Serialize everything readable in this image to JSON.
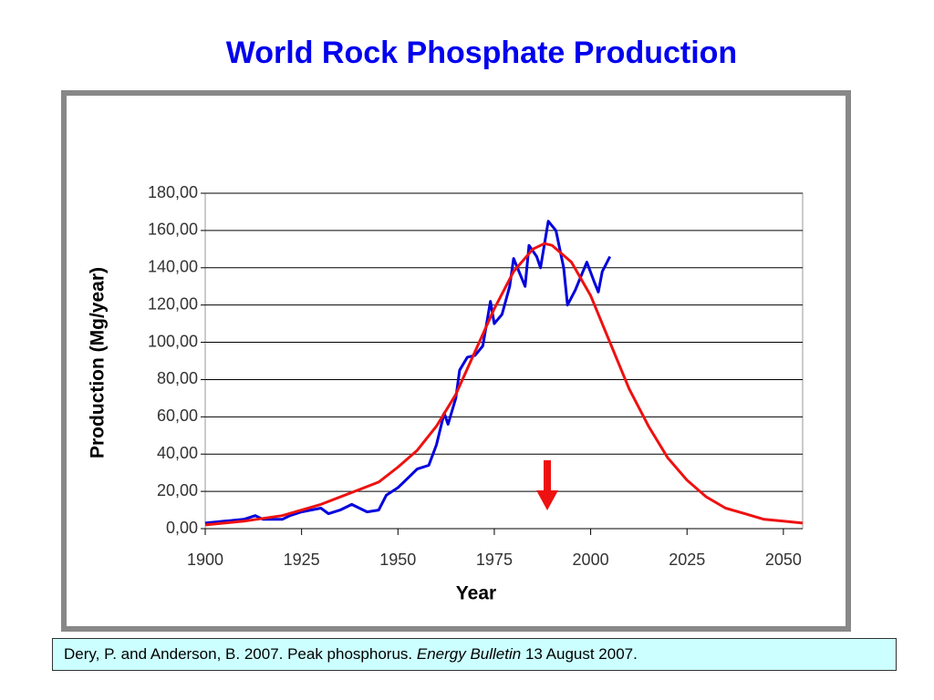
{
  "chart_data": {
    "type": "line",
    "title": "World Rock Phosphate Production",
    "xlabel": "Year",
    "ylabel": "Production (Mg/year)",
    "xlim": [
      1900,
      2055
    ],
    "xticks": [
      1900,
      1925,
      1950,
      1975,
      2000,
      2025,
      2050
    ],
    "ylim": [
      0,
      180
    ],
    "yticks": [
      {
        "value": 0,
        "label": "0,00"
      },
      {
        "value": 20,
        "label": "20,00"
      },
      {
        "value": 40,
        "label": "40,00"
      },
      {
        "value": 60,
        "label": "60,00"
      },
      {
        "value": 80,
        "label": "80,00"
      },
      {
        "value": 100,
        "label": "100,00"
      },
      {
        "value": 120,
        "label": "120,00"
      },
      {
        "value": 140,
        "label": "140,00"
      },
      {
        "value": 160,
        "label": "160,00"
      },
      {
        "value": 180,
        "label": "180,00"
      }
    ],
    "grid": true,
    "series": [
      {
        "color": "#0000dd",
        "x": [
          1900,
          1905,
          1910,
          1913,
          1915,
          1920,
          1922,
          1925,
          1930,
          1932,
          1935,
          1938,
          1940,
          1942,
          1945,
          1947,
          1950,
          1953,
          1955,
          1958,
          1960,
          1962,
          1963,
          1965,
          1966,
          1968,
          1970,
          1972,
          1974,
          1975,
          1977,
          1979,
          1980,
          1981,
          1983,
          1984,
          1986,
          1987,
          1989,
          1991,
          1993,
          1994,
          1996,
          1998,
          1999,
          2001,
          2002,
          2003,
          2005
        ],
        "values": [
          3,
          4,
          5,
          7,
          5,
          5,
          7,
          9,
          11,
          8,
          10,
          13,
          11,
          9,
          10,
          18,
          22,
          28,
          32,
          34,
          45,
          62,
          56,
          70,
          85,
          92,
          93,
          98,
          122,
          110,
          115,
          130,
          145,
          140,
          130,
          152,
          146,
          140,
          165,
          160,
          140,
          120,
          128,
          138,
          143,
          132,
          127,
          138,
          146
        ]
      },
      {
        "color": "#ee1111",
        "x": [
          1900,
          1910,
          1920,
          1930,
          1940,
          1945,
          1950,
          1955,
          1960,
          1965,
          1970,
          1975,
          1980,
          1985,
          1988,
          1990,
          1995,
          2000,
          2005,
          2010,
          2015,
          2020,
          2025,
          2030,
          2035,
          2040,
          2045,
          2050,
          2055
        ],
        "values": [
          2,
          4,
          7,
          13,
          21,
          25,
          33,
          42,
          55,
          72,
          95,
          118,
          138,
          150,
          153,
          152,
          143,
          125,
          100,
          75,
          55,
          38,
          26,
          17,
          11,
          8,
          5,
          4,
          3
        ]
      }
    ]
  },
  "citation": {
    "authors": "Dery, P. and Anderson, B. 2007. Peak phosphorus.",
    "journal": "Energy Bulletin",
    "date": "13 August 2007."
  }
}
